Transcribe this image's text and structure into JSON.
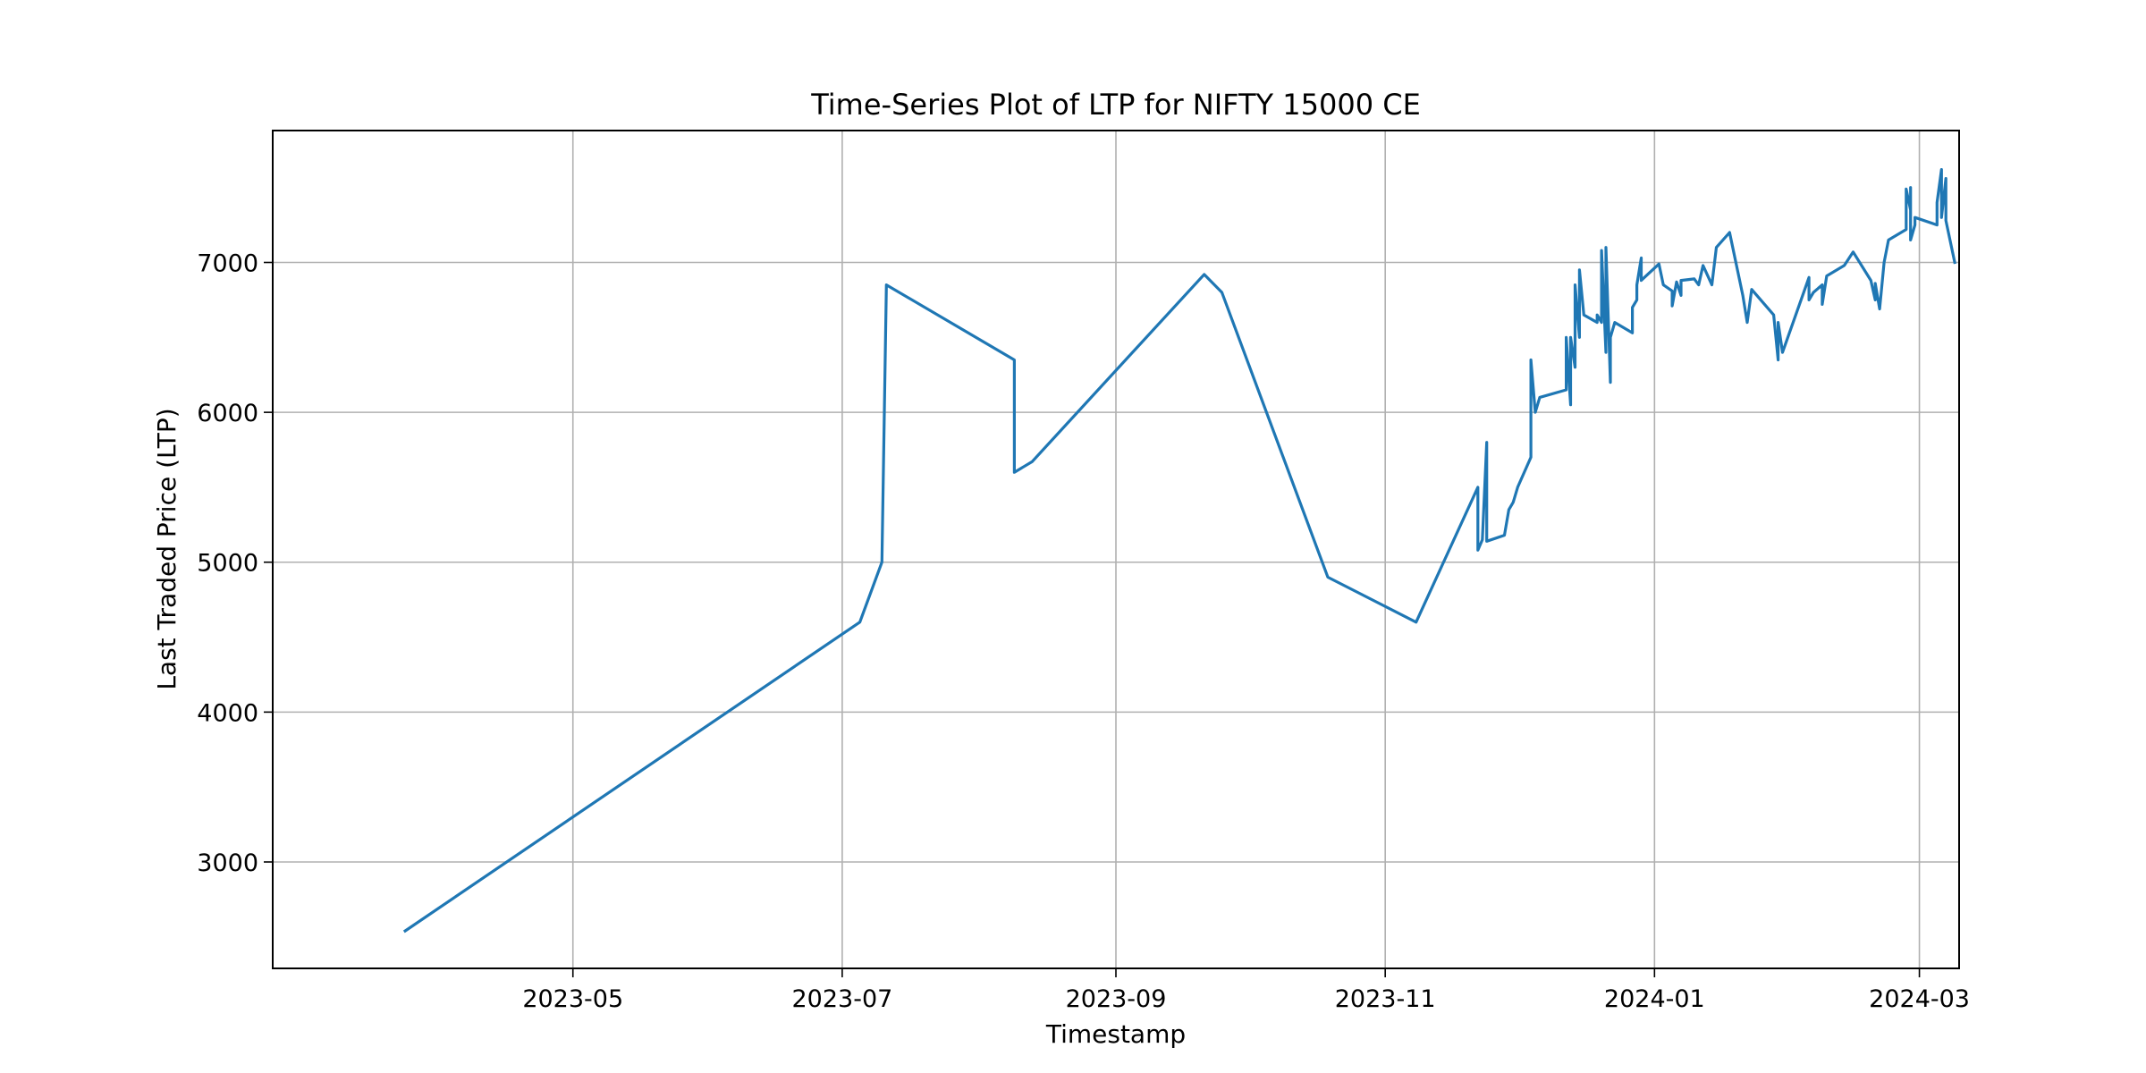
{
  "chart_data": {
    "type": "line",
    "title": "Time-Series Plot of LTP for NIFTY 15000 CE",
    "xlabel": "Timestamp",
    "ylabel": "Last Traded Price (LTP)",
    "xlim": [
      "2023-02-22",
      "2024-03-10"
    ],
    "ylim": [
      2290,
      7880
    ],
    "xticks": [
      "2023-05-01",
      "2023-07-01",
      "2023-09-01",
      "2023-11-01",
      "2024-01-01",
      "2024-03-01"
    ],
    "xtick_labels": [
      "2023-05",
      "2023-07",
      "2023-09",
      "2023-11",
      "2024-01",
      "2024-03"
    ],
    "yticks": [
      3000,
      4000,
      5000,
      6000,
      7000
    ],
    "ytick_labels": [
      "3000",
      "4000",
      "5000",
      "6000",
      "7000"
    ],
    "grid": true,
    "legend": "none",
    "series": [
      {
        "color": "#1f77b4",
        "points": [
          [
            "2023-03-24",
            2540
          ],
          [
            "2023-07-05",
            4600
          ],
          [
            "2023-07-10",
            5000
          ],
          [
            "2023-07-11",
            6850
          ],
          [
            "2023-08-09",
            6350
          ],
          [
            "2023-08-09",
            5600
          ],
          [
            "2023-08-13",
            5670
          ],
          [
            "2023-09-21",
            6920
          ],
          [
            "2023-09-25",
            6800
          ],
          [
            "2023-10-19",
            4900
          ],
          [
            "2023-11-08",
            4600
          ],
          [
            "2023-11-22",
            5500
          ],
          [
            "2023-11-22",
            5080
          ],
          [
            "2023-11-23",
            5150
          ],
          [
            "2023-11-24",
            5800
          ],
          [
            "2023-11-24",
            5140
          ],
          [
            "2023-11-28",
            5180
          ],
          [
            "2023-11-29",
            5350
          ],
          [
            "2023-11-30",
            5400
          ],
          [
            "2023-12-01",
            5500
          ],
          [
            "2023-12-04",
            5700
          ],
          [
            "2023-12-04",
            6350
          ],
          [
            "2023-12-05",
            6000
          ],
          [
            "2023-12-06",
            6100
          ],
          [
            "2023-12-12",
            6150
          ],
          [
            "2023-12-12",
            6500
          ],
          [
            "2023-12-13",
            6050
          ],
          [
            "2023-12-13",
            6500
          ],
          [
            "2023-12-14",
            6300
          ],
          [
            "2023-12-14",
            6850
          ],
          [
            "2023-12-15",
            6500
          ],
          [
            "2023-12-15",
            6950
          ],
          [
            "2023-12-16",
            6650
          ],
          [
            "2023-12-19",
            6600
          ],
          [
            "2023-12-19",
            6650
          ],
          [
            "2023-12-20",
            6600
          ],
          [
            "2023-12-20",
            7080
          ],
          [
            "2023-12-21",
            6400
          ],
          [
            "2023-12-21",
            7100
          ],
          [
            "2023-12-22",
            6200
          ],
          [
            "2023-12-22",
            6500
          ],
          [
            "2023-12-23",
            6600
          ],
          [
            "2023-12-27",
            6530
          ],
          [
            "2023-12-27",
            6700
          ],
          [
            "2023-12-28",
            6750
          ],
          [
            "2023-12-28",
            6850
          ],
          [
            "2023-12-29",
            7030
          ],
          [
            "2023-12-29",
            6880
          ],
          [
            "2024-01-02",
            6990
          ],
          [
            "2024-01-03",
            6850
          ],
          [
            "2024-01-05",
            6810
          ],
          [
            "2024-01-05",
            6710
          ],
          [
            "2024-01-06",
            6870
          ],
          [
            "2024-01-07",
            6780
          ],
          [
            "2024-01-07",
            6880
          ],
          [
            "2024-01-10",
            6890
          ],
          [
            "2024-01-11",
            6850
          ],
          [
            "2024-01-12",
            6980
          ],
          [
            "2024-01-14",
            6850
          ],
          [
            "2024-01-15",
            7100
          ],
          [
            "2024-01-18",
            7200
          ],
          [
            "2024-01-21",
            6780
          ],
          [
            "2024-01-22",
            6600
          ],
          [
            "2024-01-23",
            6820
          ],
          [
            "2024-01-28",
            6650
          ],
          [
            "2024-01-29",
            6350
          ],
          [
            "2024-01-29",
            6600
          ],
          [
            "2024-01-30",
            6400
          ],
          [
            "2024-02-05",
            6900
          ],
          [
            "2024-02-05",
            6750
          ],
          [
            "2024-02-06",
            6800
          ],
          [
            "2024-02-08",
            6850
          ],
          [
            "2024-02-08",
            6720
          ],
          [
            "2024-02-09",
            6910
          ],
          [
            "2024-02-13",
            6980
          ],
          [
            "2024-02-15",
            7070
          ],
          [
            "2024-02-19",
            6880
          ],
          [
            "2024-02-20",
            6750
          ],
          [
            "2024-02-20",
            6860
          ],
          [
            "2024-02-21",
            6690
          ],
          [
            "2024-02-22",
            7000
          ],
          [
            "2024-02-23",
            7150
          ],
          [
            "2024-02-27",
            7220
          ],
          [
            "2024-02-27",
            7490
          ],
          [
            "2024-02-28",
            7350
          ],
          [
            "2024-02-28",
            7500
          ],
          [
            "2024-02-28",
            7150
          ],
          [
            "2024-02-29",
            7250
          ],
          [
            "2024-02-29",
            7300
          ],
          [
            "2024-03-05",
            7250
          ],
          [
            "2024-03-05",
            7400
          ],
          [
            "2024-03-06",
            7620
          ],
          [
            "2024-03-06",
            7300
          ],
          [
            "2024-03-07",
            7560
          ],
          [
            "2024-03-07",
            7280
          ],
          [
            "2024-03-09",
            7000
          ]
        ]
      }
    ]
  }
}
